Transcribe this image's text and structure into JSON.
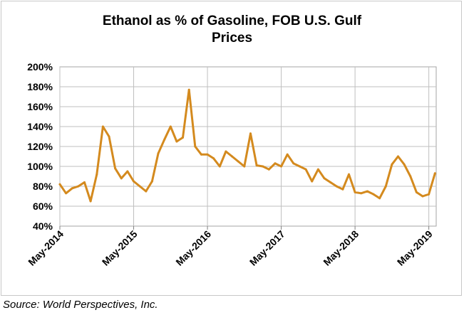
{
  "chart_data": {
    "type": "line",
    "title_lines": [
      "Ethanol as %  of Gasoline, FOB U.S. Gulf",
      "Prices"
    ],
    "xlabel": "",
    "ylabel": "",
    "ylim": [
      40,
      200
    ],
    "y_ticks": [
      "40%",
      "60%",
      "80%",
      "100%",
      "120%",
      "140%",
      "160%",
      "180%",
      "200%"
    ],
    "x_ticks": [
      "May-2014",
      "May-2015",
      "May-2016",
      "May-2017",
      "May-2018",
      "May-2019"
    ],
    "grid": true,
    "legend": "none",
    "series": [
      {
        "color": "#d48a1e",
        "x": [
          "2014-05",
          "2014-06",
          "2014-07",
          "2014-08",
          "2014-09",
          "2014-10",
          "2014-11",
          "2014-12",
          "2015-01",
          "2015-02",
          "2015-03",
          "2015-04",
          "2015-05",
          "2015-06",
          "2015-07",
          "2015-08",
          "2015-09",
          "2015-10",
          "2015-11",
          "2015-12",
          "2016-01",
          "2016-02",
          "2016-03",
          "2016-04",
          "2016-05",
          "2016-06",
          "2016-07",
          "2016-08",
          "2016-09",
          "2016-10",
          "2016-11",
          "2016-12",
          "2017-01",
          "2017-02",
          "2017-03",
          "2017-04",
          "2017-05",
          "2017-06",
          "2017-07",
          "2017-08",
          "2017-09",
          "2017-10",
          "2017-11",
          "2017-12",
          "2018-01",
          "2018-02",
          "2018-03",
          "2018-04",
          "2018-05",
          "2018-06",
          "2018-07",
          "2018-08",
          "2018-09",
          "2018-10",
          "2018-11",
          "2018-12",
          "2019-01",
          "2019-02",
          "2019-03",
          "2019-04",
          "2019-05",
          "2019-06"
        ],
        "values": [
          82,
          73,
          78,
          80,
          84,
          65,
          92,
          140,
          130,
          98,
          88,
          95,
          85,
          80,
          75,
          85,
          113,
          127,
          140,
          125,
          129,
          177,
          120,
          112,
          112,
          108,
          100,
          115,
          110,
          105,
          100,
          133,
          101,
          100,
          97,
          103,
          100,
          112,
          103,
          100,
          97,
          85,
          97,
          88,
          84,
          80,
          77,
          92,
          74,
          73,
          75,
          72,
          68,
          80,
          102,
          110,
          102,
          90,
          74,
          70,
          72,
          93
        ]
      }
    ]
  },
  "source": "Source: World Perspectives, Inc."
}
